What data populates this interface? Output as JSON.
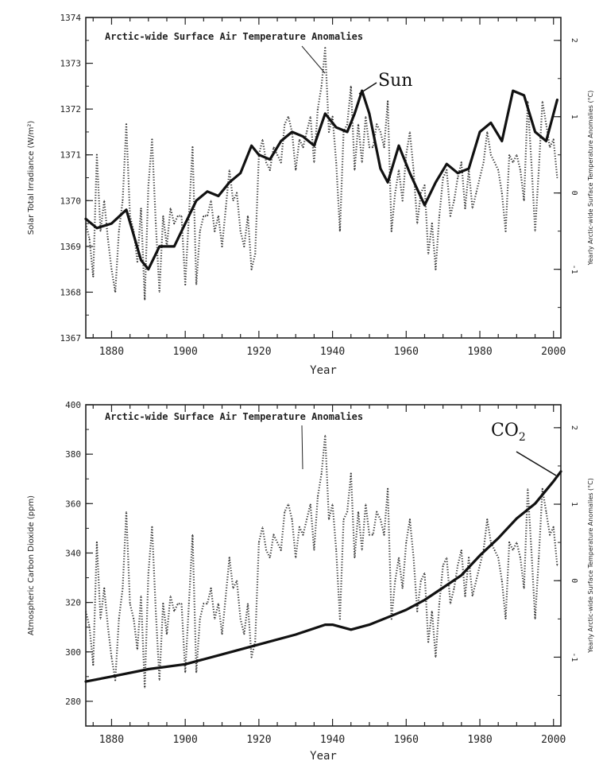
{
  "chart_data": [
    {
      "type": "line",
      "title": "Arctic-wide Surface Air Temperature Anomalies",
      "xlabel": "Year",
      "ylabel": "Solar Total Irradiance (W/m²)",
      "y2label": "Yearly Arctic-wide Surface Temperature Anomalies (°C)",
      "xlim": [
        1873,
        2002
      ],
      "ylim": [
        1367,
        1374
      ],
      "y2lim": [
        -1.9,
        2.3
      ],
      "xticks": [
        "1880",
        "1900",
        "1920",
        "1940",
        "1960",
        "1980",
        "2000"
      ],
      "yticks": [
        "1367",
        "1368",
        "1369",
        "1370",
        "1371",
        "1372",
        "1373",
        "1374"
      ],
      "y2ticks": [
        "-1",
        "0",
        "1",
        "2"
      ],
      "solid_label": "Sun",
      "solid_color": "#111111",
      "dotted_color": "#333333",
      "solid_series": {
        "x": [
          1873,
          1876,
          1880,
          1884,
          1888,
          1890,
          1893,
          1897,
          1900,
          1903,
          1906,
          1909,
          1912,
          1915,
          1918,
          1920,
          1923,
          1926,
          1929,
          1932,
          1935,
          1938,
          1941,
          1944,
          1946,
          1948,
          1950,
          1953,
          1955,
          1958,
          1961,
          1965,
          1968,
          1971,
          1974,
          1977,
          1980,
          1983,
          1986,
          1989,
          1992,
          1995,
          1998,
          2001
        ],
        "y": [
          1369.6,
          1369.4,
          1369.5,
          1369.8,
          1368.7,
          1368.5,
          1369.0,
          1369.0,
          1369.5,
          1370.0,
          1370.2,
          1370.1,
          1370.4,
          1370.6,
          1371.2,
          1371.0,
          1370.9,
          1371.3,
          1371.5,
          1371.4,
          1371.2,
          1371.9,
          1371.6,
          1371.5,
          1371.9,
          1372.4,
          1371.9,
          1370.7,
          1370.4,
          1371.2,
          1370.6,
          1369.9,
          1370.4,
          1370.8,
          1370.6,
          1370.7,
          1371.5,
          1371.7,
          1371.3,
          1372.4,
          1372.3,
          1371.5,
          1371.3,
          1372.2
        ]
      },
      "dotted_series": {
        "x": [
          1873,
          1874,
          1875,
          1876,
          1877,
          1878,
          1879,
          1880,
          1881,
          1882,
          1883,
          1884,
          1885,
          1886,
          1887,
          1888,
          1889,
          1890,
          1891,
          1892,
          1893,
          1894,
          1895,
          1896,
          1897,
          1898,
          1899,
          1900,
          1901,
          1902,
          1903,
          1904,
          1905,
          1906,
          1907,
          1908,
          1909,
          1910,
          1911,
          1912,
          1913,
          1914,
          1915,
          1916,
          1917,
          1918,
          1919,
          1920,
          1921,
          1922,
          1923,
          1924,
          1925,
          1926,
          1927,
          1928,
          1929,
          1930,
          1931,
          1932,
          1933,
          1934,
          1935,
          1936,
          1937,
          1938,
          1939,
          1940,
          1941,
          1942,
          1943,
          1944,
          1945,
          1946,
          1947,
          1948,
          1949,
          1950,
          1951,
          1952,
          1953,
          1954,
          1955,
          1956,
          1957,
          1958,
          1959,
          1960,
          1961,
          1962,
          1963,
          1964,
          1965,
          1966,
          1967,
          1968,
          1969,
          1970,
          1971,
          1972,
          1973,
          1974,
          1975,
          1976,
          1977,
          1978,
          1979,
          1980,
          1981,
          1982,
          1983,
          1984,
          1985,
          1986,
          1987,
          1988,
          1989,
          1990,
          1991,
          1992,
          1993,
          1994,
          1995,
          1996,
          1997,
          1998,
          1999,
          2000,
          2001
        ],
        "y": [
          -0.4,
          -0.6,
          -1.1,
          0.5,
          -0.5,
          -0.1,
          -0.6,
          -1.0,
          -1.3,
          -0.5,
          -0.1,
          0.9,
          -0.3,
          -0.5,
          -0.9,
          -0.2,
          -1.4,
          0.1,
          0.7,
          -0.4,
          -1.3,
          -0.3,
          -0.7,
          -0.2,
          -0.4,
          -0.3,
          -0.3,
          -1.2,
          -0.3,
          0.6,
          -1.2,
          -0.5,
          -0.3,
          -0.3,
          -0.1,
          -0.5,
          -0.3,
          -0.7,
          -0.2,
          0.3,
          -0.1,
          0.0,
          -0.5,
          -0.7,
          -0.3,
          -1.0,
          -0.8,
          0.5,
          0.7,
          0.4,
          0.3,
          0.6,
          0.5,
          0.4,
          0.9,
          1.0,
          0.8,
          0.3,
          0.7,
          0.6,
          0.8,
          1.0,
          0.4,
          1.1,
          1.4,
          1.9,
          0.8,
          1.0,
          0.4,
          -0.5,
          0.8,
          0.9,
          1.4,
          0.3,
          0.9,
          0.4,
          1.0,
          0.6,
          0.6,
          0.9,
          0.8,
          0.6,
          1.2,
          -0.5,
          0.0,
          0.3,
          -0.1,
          0.5,
          0.8,
          0.3,
          -0.4,
          0.0,
          0.1,
          -0.8,
          -0.4,
          -1.0,
          -0.3,
          0.2,
          0.3,
          -0.3,
          -0.1,
          0.2,
          0.4,
          -0.2,
          0.3,
          -0.2,
          0.0,
          0.2,
          0.4,
          0.8,
          0.5,
          0.4,
          0.3,
          0.0,
          -0.5,
          0.5,
          0.4,
          0.5,
          0.3,
          -0.1,
          1.2,
          0.4,
          -0.5,
          0.3,
          1.2,
          0.9,
          0.6,
          0.7,
          0.2
        ]
      }
    },
    {
      "type": "line",
      "title": "Arctic-wide Surface Air Temperature Anomalies",
      "xlabel": "Year",
      "ylabel": "Atmospheric Carbon Dioxide (ppm)",
      "y2label": "Yearly Arctic-wide Surface Temperature Anomalies (°C)",
      "xlim": [
        1873,
        2002
      ],
      "ylim": [
        270,
        400
      ],
      "y2lim": [
        -1.9,
        2.3
      ],
      "xticks": [
        "1880",
        "1900",
        "1920",
        "1940",
        "1960",
        "1980",
        "2000"
      ],
      "yticks": [
        "280",
        "300",
        "320",
        "340",
        "360",
        "380",
        "400"
      ],
      "y2ticks": [
        "-1",
        "0",
        "1",
        "2"
      ],
      "solid_label": "CO",
      "solid_label_sub": "2",
      "solid_color": "#111111",
      "dotted_color": "#333333",
      "solid_series": {
        "x": [
          1873,
          1880,
          1890,
          1900,
          1910,
          1920,
          1930,
          1938,
          1940,
          1945,
          1950,
          1955,
          1960,
          1965,
          1970,
          1975,
          1980,
          1985,
          1990,
          1995,
          2000,
          2002
        ],
        "y": [
          288,
          290,
          293,
          295,
          299,
          303,
          307,
          311,
          311,
          309,
          311,
          314,
          317,
          321,
          326,
          331,
          339,
          346,
          354,
          360,
          369,
          373
        ]
      },
      "dotted_series": "same_as_top"
    }
  ]
}
